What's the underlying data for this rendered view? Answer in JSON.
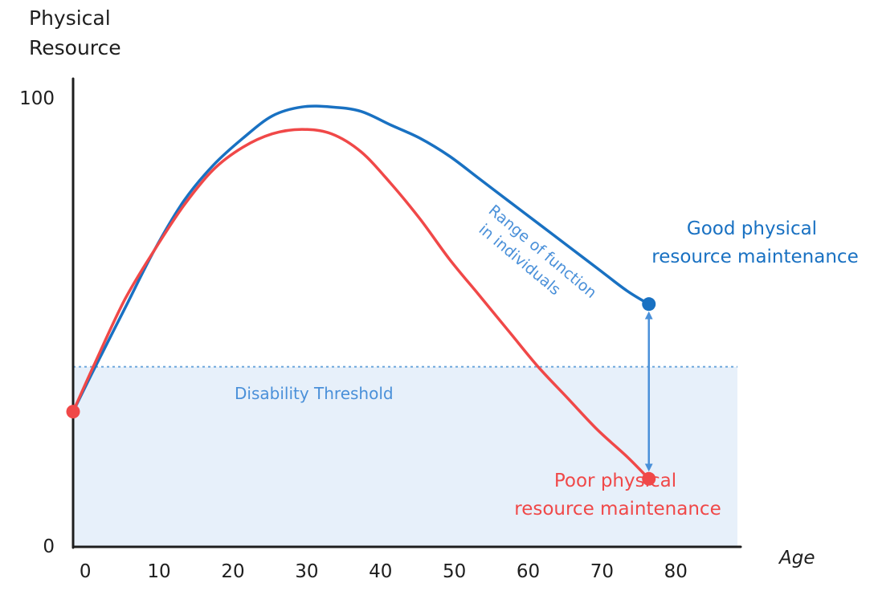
{
  "chart_data": {
    "type": "line",
    "ylabel": [
      "Physical",
      "Resource"
    ],
    "xlabel": "Age",
    "x_ticks": [
      "0",
      "10",
      "20",
      "30",
      "40",
      "50",
      "60",
      "70",
      "80"
    ],
    "y_ticks": [
      "0",
      "100"
    ],
    "xlim": [
      -1,
      89
    ],
    "ylim": [
      0,
      100
    ],
    "grid": false,
    "threshold": {
      "label": "Disability Threshold",
      "value": 40
    },
    "range_annotation": [
      "Range of function",
      "in individuals"
    ],
    "series": [
      {
        "name": "Good physical resource maintenance",
        "label_lines": [
          "Good physical",
          "resource maintenance"
        ],
        "color": "#1971c2",
        "x": [
          -1,
          2,
          6,
          10,
          14,
          18,
          22,
          26,
          30,
          34,
          38,
          42,
          46,
          50,
          54,
          58,
          62,
          66,
          70,
          74,
          77
        ],
        "y": [
          30,
          40,
          53,
          66,
          77,
          85,
          91,
          96,
          98,
          98,
          97,
          94,
          91,
          87,
          82,
          77,
          72,
          67,
          62,
          57,
          54
        ]
      },
      {
        "name": "Poor physical resource maintenance",
        "label_lines": [
          "Poor physical",
          "resource maintenance"
        ],
        "color": "#f04848",
        "x": [
          -1,
          2,
          6,
          10,
          14,
          18,
          22,
          26,
          30,
          34,
          38,
          42,
          46,
          50,
          54,
          58,
          62,
          66,
          70,
          74,
          77
        ],
        "y": [
          30,
          41,
          55,
          66,
          76,
          84,
          89,
          92,
          93,
          92,
          88,
          81,
          73,
          64,
          56,
          48,
          40,
          33,
          26,
          20,
          15
        ]
      }
    ],
    "colors": {
      "axis": "#1e1e1e",
      "good": "#1971c2",
      "poor": "#f04848",
      "threshold_line": "#6fa8dc",
      "threshold_fill": "#e7f0fa",
      "annotation": "#4a90d9"
    }
  }
}
